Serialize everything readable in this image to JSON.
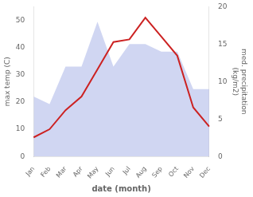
{
  "chart_data": {
    "type": "line",
    "categories": [
      "Jan",
      "Feb",
      "Mar",
      "Apr",
      "May",
      "Jun",
      "Jul",
      "Aug",
      "Sep",
      "Oct",
      "Nov",
      "Dec"
    ],
    "series": [
      {
        "type": "area",
        "axis": "y2",
        "color": "#aab4e8",
        "values": [
          8,
          7,
          12,
          12,
          18,
          12,
          15,
          15,
          14,
          14,
          9,
          9
        ]
      },
      {
        "type": "line",
        "color": "#cc2222",
        "values": [
          7,
          10,
          17,
          22,
          32,
          42,
          43,
          51,
          44,
          37,
          18,
          11
        ]
      }
    ],
    "xlabel": "date (month)",
    "ylabel": "max temp (C)",
    "y2label": "med. precipitation\n(kg/m2)",
    "ylim": [
      0,
      55
    ],
    "yticks": [
      0,
      10,
      20,
      30,
      40,
      50
    ],
    "y2lim": [
      0,
      20
    ],
    "y2ticks": [
      0,
      5,
      10,
      15,
      20
    ],
    "grid": false
  }
}
